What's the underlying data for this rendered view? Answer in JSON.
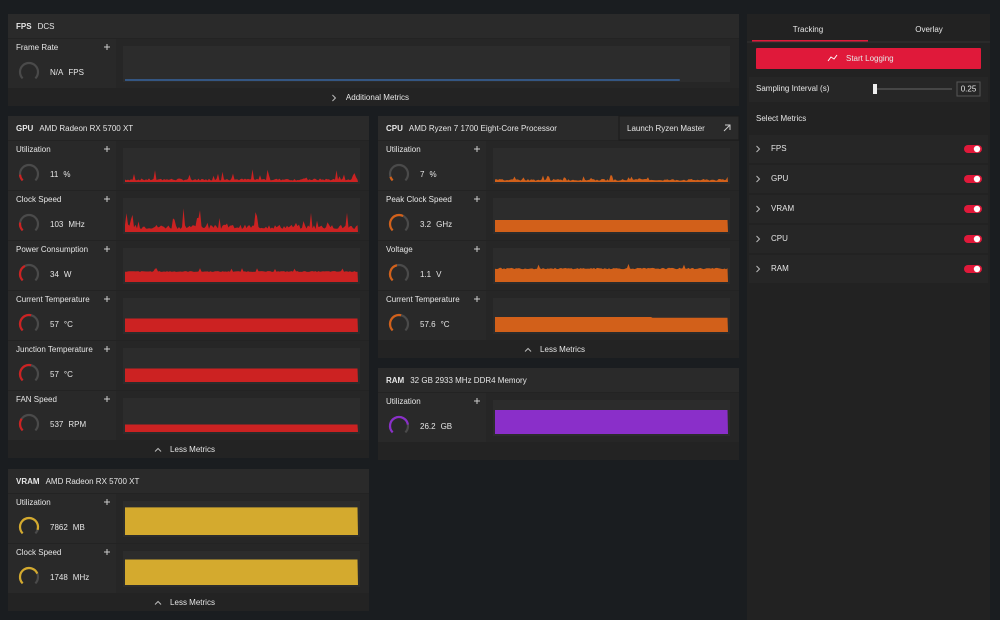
{
  "panels": [
    {
      "title": "FPS",
      "subtitle": "DCS",
      "metrics": [
        {
          "label": "Frame Rate",
          "value": "N/A",
          "unit": "FPS"
        }
      ],
      "footer": "Additional Metrics"
    },
    {
      "title": "GPU",
      "subtitle": "AMD Radeon RX 5700 XT",
      "metrics": [
        {
          "label": "Utilization",
          "value": 11,
          "unit": "%"
        },
        {
          "label": "Clock Speed",
          "value": 103,
          "unit": "MHz"
        },
        {
          "label": "Power Consumption",
          "value": 34,
          "unit": "W"
        },
        {
          "label": "Current Temperature",
          "value": 57,
          "unit": "°C"
        },
        {
          "label": "Junction Temperature",
          "value": 57,
          "unit": "°C"
        },
        {
          "label": "FAN Speed",
          "value": 537,
          "unit": "RPM"
        }
      ],
      "footer": "Less Metrics"
    },
    {
      "title": "CPU",
      "subtitle": "AMD Ryzen 7 1700 Eight-Core Processor",
      "button": "Launch Ryzen Master",
      "metrics": [
        {
          "label": "Utilization",
          "value": 7,
          "unit": "%"
        },
        {
          "label": "Peak Clock Speed",
          "value": 3.2,
          "unit": "GHz"
        },
        {
          "label": "Voltage",
          "value": 1.1,
          "unit": "V"
        },
        {
          "label": "Current Temperature",
          "value": 57.6,
          "unit": "°C"
        }
      ],
      "footer": "Less Metrics"
    },
    {
      "title": "RAM",
      "subtitle": "32 GB 2933 MHz DDR4 Memory",
      "metrics": [
        {
          "label": "Utilization",
          "value": 26.2,
          "unit": "GB"
        }
      ]
    },
    {
      "title": "VRAM",
      "subtitle": "AMD Radeon RX 5700 XT",
      "metrics": [
        {
          "label": "Utilization",
          "value": 7862,
          "unit": "MB"
        },
        {
          "label": "Clock Speed",
          "value": 1748,
          "unit": "MHz"
        }
      ],
      "footer": "Less Metrics"
    }
  ],
  "sidebar": {
    "tabs": [
      "Tracking",
      "Overlay"
    ],
    "button": "Start Logging",
    "sampling_label": "Sampling Interval (s)",
    "sampling_value": "0.25",
    "select_metrics": "Select Metrics",
    "metrics": [
      "FPS",
      "GPU",
      "VRAM",
      "CPU",
      "RAM"
    ]
  }
}
